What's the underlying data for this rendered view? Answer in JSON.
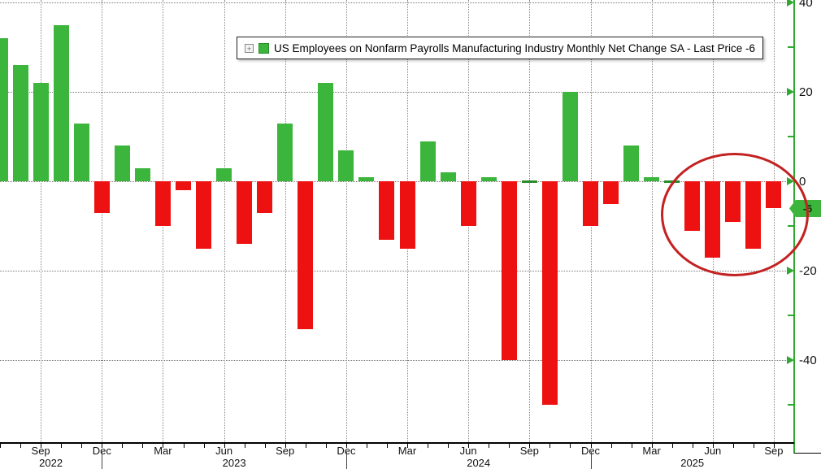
{
  "legend": {
    "expand_icon_label": "+",
    "label": "US Employees on Nonfarm Payrolls Manufacturing Industry Monthly Net Change SA - Last Price -6"
  },
  "colors": {
    "positive": "#3bb53b",
    "negative": "#ee1111",
    "zero_bar": "#2b8c2b",
    "axis": "#2ea82e",
    "annotation": "#c32222",
    "tag_bg": "#3bb53b"
  },
  "y_axis": {
    "major_ticks": [
      40,
      20,
      0,
      -20,
      -40
    ],
    "minor_ticks": [
      30,
      10,
      -10,
      -30,
      -50
    ],
    "last_price_label": "-6"
  },
  "x_axis": {
    "quarter_labels": [
      "Sep",
      "Dec",
      "Mar",
      "Jun",
      "Sep",
      "Dec",
      "Mar",
      "Jun",
      "Sep",
      "Dec",
      "Mar",
      "Jun",
      "Sep"
    ],
    "year_labels": [
      "2022",
      "2023",
      "2024",
      "2025"
    ]
  },
  "chart_data": {
    "type": "bar",
    "title": "US Employees on Nonfarm Payrolls Manufacturing Industry Monthly Net Change SA",
    "series_name": "US Employees on Nonfarm Payrolls Manufacturing Industry Monthly Net Change SA",
    "last_price": -6,
    "ylim": [
      -58,
      40.5
    ],
    "grid": true,
    "legend_position": "top-center",
    "annotation": "red ellipse circling May 2025 through Sep 2025 bars",
    "months": [
      {
        "m": "Jul",
        "y": "2022",
        "v": 32
      },
      {
        "m": "Aug",
        "y": "2022",
        "v": 26
      },
      {
        "m": "Sep",
        "y": "2022",
        "v": 22
      },
      {
        "m": "Oct",
        "y": "2022",
        "v": 35
      },
      {
        "m": "Nov",
        "y": "2022",
        "v": 13
      },
      {
        "m": "Dec",
        "y": "2022",
        "v": -7
      },
      {
        "m": "Jan",
        "y": "2023",
        "v": 8
      },
      {
        "m": "Feb",
        "y": "2023",
        "v": 3
      },
      {
        "m": "Mar",
        "y": "2023",
        "v": -10
      },
      {
        "m": "Apr",
        "y": "2023",
        "v": -2
      },
      {
        "m": "May",
        "y": "2023",
        "v": -15
      },
      {
        "m": "Jun",
        "y": "2023",
        "v": 3
      },
      {
        "m": "Jul",
        "y": "2023",
        "v": -14
      },
      {
        "m": "Aug",
        "y": "2023",
        "v": -7
      },
      {
        "m": "Sep",
        "y": "2023",
        "v": 13
      },
      {
        "m": "Oct",
        "y": "2023",
        "v": -33
      },
      {
        "m": "Nov",
        "y": "2023",
        "v": 22
      },
      {
        "m": "Dec",
        "y": "2023",
        "v": 7
      },
      {
        "m": "Jan",
        "y": "2024",
        "v": 1
      },
      {
        "m": "Feb",
        "y": "2024",
        "v": -13
      },
      {
        "m": "Mar",
        "y": "2024",
        "v": -15
      },
      {
        "m": "Apr",
        "y": "2024",
        "v": 9
      },
      {
        "m": "May",
        "y": "2024",
        "v": 2
      },
      {
        "m": "Jun",
        "y": "2024",
        "v": -10
      },
      {
        "m": "Jul",
        "y": "2024",
        "v": 1
      },
      {
        "m": "Aug",
        "y": "2024",
        "v": -40
      },
      {
        "m": "Sep",
        "y": "2024",
        "v": 0
      },
      {
        "m": "Oct",
        "y": "2024",
        "v": -50
      },
      {
        "m": "Nov",
        "y": "2024",
        "v": 20
      },
      {
        "m": "Dec",
        "y": "2024",
        "v": -10
      },
      {
        "m": "Jan",
        "y": "2025",
        "v": -5
      },
      {
        "m": "Feb",
        "y": "2025",
        "v": 8
      },
      {
        "m": "Mar",
        "y": "2025",
        "v": 1
      },
      {
        "m": "Apr",
        "y": "2025",
        "v": 0
      },
      {
        "m": "May",
        "y": "2025",
        "v": -11
      },
      {
        "m": "Jun",
        "y": "2025",
        "v": -17
      },
      {
        "m": "Jul",
        "y": "2025",
        "v": -9
      },
      {
        "m": "Aug",
        "y": "2025",
        "v": -15
      },
      {
        "m": "Sep",
        "y": "2025",
        "v": -6
      }
    ]
  }
}
